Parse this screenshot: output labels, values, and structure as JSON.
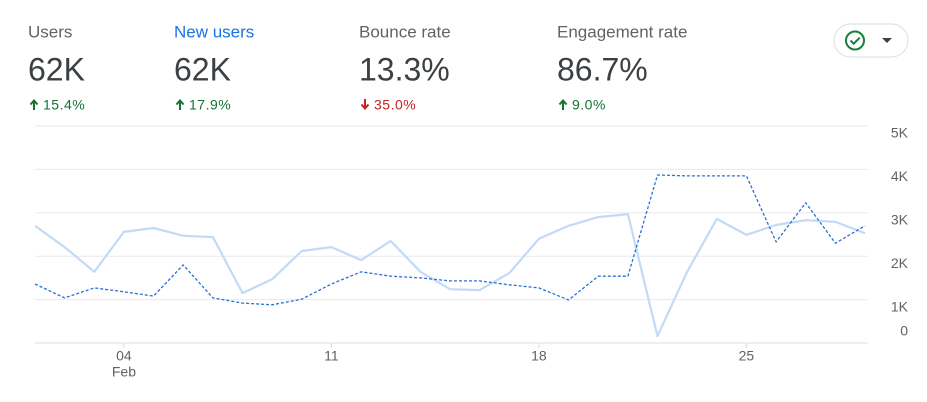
{
  "metrics": [
    {
      "label": "Users",
      "value": "62K",
      "change": "15.4%",
      "direction": "up",
      "selected": false
    },
    {
      "label": "New users",
      "value": "62K",
      "change": "17.9%",
      "direction": "up",
      "selected": true
    },
    {
      "label": "Bounce rate",
      "value": "13.3%",
      "change": "35.0%",
      "direction": "down",
      "selected": false
    },
    {
      "label": "Engagement rate",
      "value": "86.7%",
      "change": "9.0%",
      "direction": "up",
      "selected": false
    }
  ],
  "chart_data": {
    "type": "line",
    "categories": [
      null,
      null,
      null,
      "04",
      null,
      null,
      null,
      null,
      null,
      null,
      "11",
      null,
      null,
      null,
      null,
      null,
      null,
      "18",
      null,
      null,
      null,
      null,
      null,
      null,
      "25",
      null,
      null,
      null,
      null
    ],
    "x_sublabel": {
      "index": 3,
      "label": "Feb"
    },
    "series": [
      {
        "color": "#c3daf6",
        "style": "solid",
        "values": [
          2700,
          2210,
          1640,
          2560,
          2650,
          2470,
          2440,
          1150,
          1470,
          2120,
          2210,
          1910,
          2350,
          1640,
          1240,
          1220,
          1610,
          2400,
          2700,
          2900,
          2970,
          160,
          1640,
          2860,
          2490,
          2720,
          2830,
          2790,
          2530
        ]
      },
      {
        "color": "#2b6fd6",
        "style": "dashed",
        "values": [
          1360,
          1040,
          1270,
          1180,
          1080,
          1800,
          1040,
          920,
          880,
          1010,
          1360,
          1640,
          1540,
          1500,
          1430,
          1430,
          1340,
          1270,
          990,
          1540,
          1540,
          3870,
          3850,
          3850,
          3850,
          2330,
          3230,
          2300,
          2700
        ]
      }
    ],
    "ylim": [
      0,
      5000
    ],
    "yticks": [
      {
        "value": 0,
        "label": "0"
      },
      {
        "value": 1000,
        "label": "1K"
      },
      {
        "value": 2000,
        "label": "2K"
      },
      {
        "value": 3000,
        "label": "3K"
      },
      {
        "value": 4000,
        "label": "4K"
      },
      {
        "value": 5000,
        "label": "5K"
      }
    ],
    "grid": true
  }
}
